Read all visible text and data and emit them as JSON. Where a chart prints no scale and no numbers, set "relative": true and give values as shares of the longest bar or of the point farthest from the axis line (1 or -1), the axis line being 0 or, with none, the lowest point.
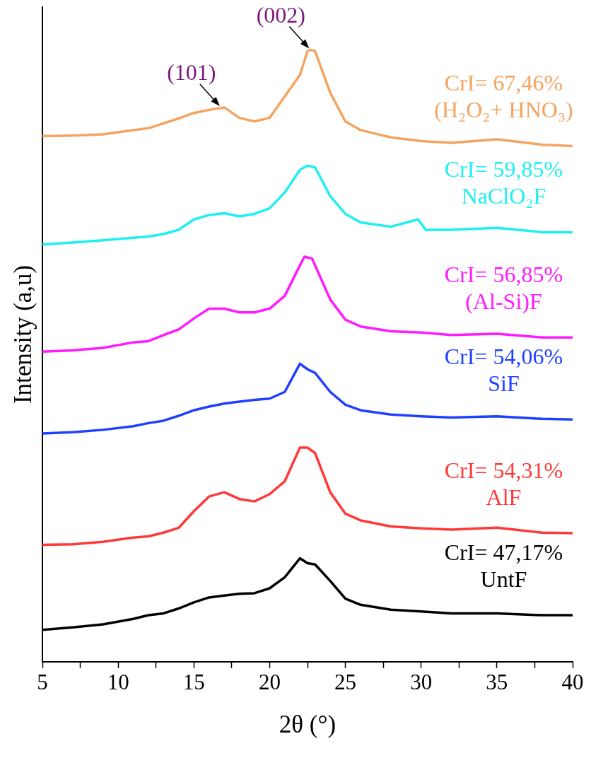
{
  "chart_data": {
    "type": "line",
    "relative": true,
    "xlabel": "2θ (°)",
    "ylabel": "Intensity (a,u)",
    "grid": false,
    "legend": false,
    "marker": "none",
    "line_style": "solid",
    "xlim": [
      5,
      40
    ],
    "xticks": [
      5,
      {
        "value": 7.5,
        "label": null
      },
      10,
      {
        "value": 12.5,
        "label": null
      },
      15,
      {
        "value": 17.5,
        "label": null
      },
      20,
      {
        "value": 22.5,
        "label": null
      },
      25,
      {
        "value": 27.5,
        "label": null
      },
      30,
      {
        "value": 32.5,
        "label": null
      },
      35,
      {
        "value": 37.5,
        "label": null
      },
      40
    ],
    "series": [
      {
        "name": "CrI= 67,46%\n(H₂O₂+ HNO₃)",
        "color": "#f4a460",
        "x": [
          5,
          7,
          9,
          11,
          12,
          13,
          14,
          15,
          16,
          17,
          18,
          19,
          20,
          21,
          22,
          22.5,
          22.7,
          23,
          24,
          25,
          26,
          28,
          30,
          32,
          35,
          38,
          40
        ],
        "values": [
          0.859,
          0.86,
          0.862,
          0.869,
          0.872,
          0.88,
          0.888,
          0.897,
          0.902,
          0.906,
          0.889,
          0.883,
          0.889,
          0.924,
          0.959,
          0.998,
          1.0,
          0.998,
          0.93,
          0.883,
          0.869,
          0.857,
          0.851,
          0.848,
          0.854,
          0.845,
          0.843
        ]
      },
      {
        "name": "CrI= 59,85%\nNaClO₂F",
        "color": "#1ef0f0",
        "x": [
          5,
          7,
          9,
          11,
          12,
          13,
          14,
          15,
          16,
          17,
          18,
          19,
          20,
          21,
          22,
          22.5,
          23,
          24,
          25,
          26,
          28,
          29.8,
          30.3,
          32,
          35,
          38,
          40
        ],
        "values": [
          0.682,
          0.685,
          0.689,
          0.693,
          0.695,
          0.699,
          0.706,
          0.723,
          0.73,
          0.733,
          0.728,
          0.732,
          0.741,
          0.767,
          0.804,
          0.811,
          0.808,
          0.761,
          0.732,
          0.718,
          0.711,
          0.723,
          0.706,
          0.706,
          0.709,
          0.702,
          0.702
        ]
      },
      {
        "name": "CrI= 56,85%\n(Al-Si)F",
        "color": "#ff1aff",
        "x": [
          5,
          7,
          9,
          11,
          12,
          13,
          14,
          15,
          16,
          17,
          18,
          19,
          20,
          21,
          22,
          22.3,
          22.8,
          24,
          25,
          26,
          28,
          30,
          32,
          35,
          38,
          40
        ],
        "values": [
          0.507,
          0.509,
          0.513,
          0.522,
          0.524,
          0.534,
          0.543,
          0.561,
          0.577,
          0.577,
          0.571,
          0.571,
          0.577,
          0.598,
          0.648,
          0.662,
          0.659,
          0.592,
          0.559,
          0.548,
          0.54,
          0.538,
          0.534,
          0.536,
          0.53,
          0.53
        ]
      },
      {
        "name": "CrI= 54,06%\nSiF",
        "color": "#2040ff",
        "x": [
          5,
          7,
          9,
          11,
          12,
          13,
          14,
          15,
          16,
          17,
          18,
          19,
          20,
          21,
          22,
          22.5,
          23,
          24,
          25,
          26,
          28,
          30,
          32,
          35,
          38,
          40
        ],
        "values": [
          0.373,
          0.375,
          0.379,
          0.385,
          0.39,
          0.394,
          0.402,
          0.411,
          0.417,
          0.422,
          0.425,
          0.428,
          0.43,
          0.441,
          0.487,
          0.478,
          0.472,
          0.441,
          0.42,
          0.411,
          0.404,
          0.401,
          0.399,
          0.401,
          0.397,
          0.396
        ]
      },
      {
        "name": "CrI= 54,31%\nAlF",
        "color": "#ff3838",
        "x": [
          5,
          7,
          9,
          11,
          12,
          13,
          14,
          15,
          16,
          17,
          18,
          19,
          20,
          21,
          22,
          22.5,
          23,
          24,
          25,
          26,
          28,
          30,
          32,
          35,
          38,
          40
        ],
        "values": [
          0.191,
          0.192,
          0.196,
          0.203,
          0.205,
          0.211,
          0.219,
          0.246,
          0.27,
          0.277,
          0.266,
          0.262,
          0.274,
          0.295,
          0.35,
          0.35,
          0.341,
          0.277,
          0.242,
          0.231,
          0.221,
          0.218,
          0.216,
          0.219,
          0.211,
          0.21
        ]
      },
      {
        "name": "CrI= 47,17%\nUntF",
        "color": "#000000",
        "x": [
          5,
          7,
          9,
          11,
          12,
          13,
          14,
          15,
          16,
          17,
          18,
          19,
          20,
          21,
          22,
          22.5,
          23,
          24,
          25,
          26,
          28,
          30,
          32,
          35,
          38,
          40
        ],
        "values": [
          0.052,
          0.056,
          0.061,
          0.07,
          0.076,
          0.079,
          0.087,
          0.097,
          0.105,
          0.108,
          0.111,
          0.112,
          0.12,
          0.138,
          0.169,
          0.161,
          0.159,
          0.132,
          0.103,
          0.093,
          0.085,
          0.082,
          0.079,
          0.079,
          0.076,
          0.076
        ]
      }
    ],
    "annotations": [
      {
        "text": "(101)",
        "x": 16.8,
        "y": 0.906
      },
      {
        "text": "(002)",
        "x": 22.7,
        "y": 1.0
      }
    ]
  }
}
